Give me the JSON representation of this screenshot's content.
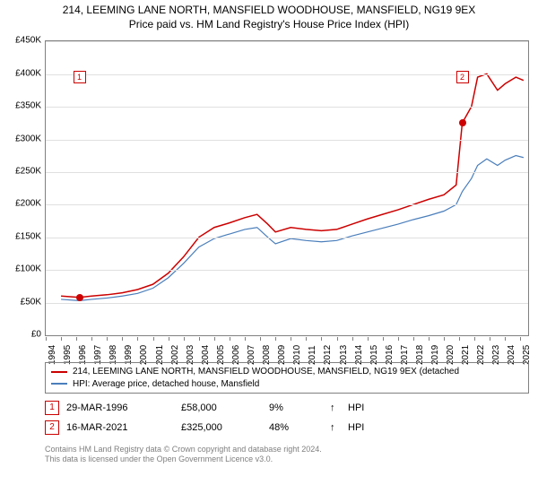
{
  "title": {
    "line1": "214, LEEMING LANE NORTH, MANSFIELD WOODHOUSE, MANSFIELD, NG19 9EX",
    "line2": "Price paid vs. HM Land Registry's House Price Index (HPI)"
  },
  "chart": {
    "type": "line",
    "background_color": "#ffffff",
    "grid_color": "#e0e0e0",
    "axis_color": "#808080",
    "xlim": [
      1994,
      2025.5
    ],
    "ylim": [
      0,
      450000
    ],
    "ytick_step": 50000,
    "ytick_labels": [
      "£0",
      "£50K",
      "£100K",
      "£150K",
      "£200K",
      "£250K",
      "£300K",
      "£350K",
      "£400K",
      "£450K"
    ],
    "xtick_years": [
      1994,
      1995,
      1996,
      1997,
      1998,
      1999,
      2000,
      2001,
      2002,
      2003,
      2004,
      2005,
      2006,
      2007,
      2008,
      2009,
      2010,
      2011,
      2012,
      2013,
      2014,
      2015,
      2016,
      2017,
      2018,
      2019,
      2020,
      2021,
      2022,
      2023,
      2024,
      2025
    ],
    "series": [
      {
        "name": "property",
        "label": "214, LEEMING LANE NORTH, MANSFIELD WOODHOUSE, MANSFIELD, NG19 9EX (detached)",
        "color": "#cc0000",
        "line_width": 1.5,
        "points": [
          [
            1995.0,
            60000
          ],
          [
            1996.2,
            58000
          ],
          [
            1997.0,
            60000
          ],
          [
            1998.0,
            62000
          ],
          [
            1999.0,
            65000
          ],
          [
            2000.0,
            70000
          ],
          [
            2001.0,
            78000
          ],
          [
            2002.0,
            95000
          ],
          [
            2003.0,
            120000
          ],
          [
            2004.0,
            150000
          ],
          [
            2005.0,
            165000
          ],
          [
            2006.0,
            172000
          ],
          [
            2007.0,
            180000
          ],
          [
            2007.8,
            185000
          ],
          [
            2008.5,
            170000
          ],
          [
            2009.0,
            158000
          ],
          [
            2010.0,
            165000
          ],
          [
            2011.0,
            162000
          ],
          [
            2012.0,
            160000
          ],
          [
            2013.0,
            162000
          ],
          [
            2014.0,
            170000
          ],
          [
            2015.0,
            178000
          ],
          [
            2016.0,
            185000
          ],
          [
            2017.0,
            192000
          ],
          [
            2018.0,
            200000
          ],
          [
            2019.0,
            208000
          ],
          [
            2020.0,
            215000
          ],
          [
            2020.8,
            230000
          ],
          [
            2021.2,
            325000
          ],
          [
            2021.8,
            350000
          ],
          [
            2022.2,
            395000
          ],
          [
            2022.8,
            400000
          ],
          [
            2023.5,
            375000
          ],
          [
            2024.0,
            385000
          ],
          [
            2024.7,
            395000
          ],
          [
            2025.2,
            390000
          ]
        ]
      },
      {
        "name": "hpi",
        "label": "HPI: Average price, detached house, Mansfield",
        "color": "#4a7ebb",
        "line_width": 1.2,
        "points": [
          [
            1995.0,
            55000
          ],
          [
            1996.2,
            53000
          ],
          [
            1997.0,
            55000
          ],
          [
            1998.0,
            57000
          ],
          [
            1999.0,
            60000
          ],
          [
            2000.0,
            64000
          ],
          [
            2001.0,
            72000
          ],
          [
            2002.0,
            88000
          ],
          [
            2003.0,
            110000
          ],
          [
            2004.0,
            135000
          ],
          [
            2005.0,
            148000
          ],
          [
            2006.0,
            155000
          ],
          [
            2007.0,
            162000
          ],
          [
            2007.8,
            165000
          ],
          [
            2008.5,
            150000
          ],
          [
            2009.0,
            140000
          ],
          [
            2010.0,
            148000
          ],
          [
            2011.0,
            145000
          ],
          [
            2012.0,
            143000
          ],
          [
            2013.0,
            145000
          ],
          [
            2014.0,
            152000
          ],
          [
            2015.0,
            158000
          ],
          [
            2016.0,
            164000
          ],
          [
            2017.0,
            170000
          ],
          [
            2018.0,
            177000
          ],
          [
            2019.0,
            183000
          ],
          [
            2020.0,
            190000
          ],
          [
            2020.8,
            200000
          ],
          [
            2021.2,
            220000
          ],
          [
            2021.8,
            240000
          ],
          [
            2022.2,
            260000
          ],
          [
            2022.8,
            270000
          ],
          [
            2023.5,
            260000
          ],
          [
            2024.0,
            268000
          ],
          [
            2024.7,
            275000
          ],
          [
            2025.2,
            272000
          ]
        ]
      }
    ],
    "transaction_markers": [
      {
        "num": "1",
        "x": 1996.2,
        "y": 58000,
        "box_y_offset_k": 395000
      },
      {
        "num": "2",
        "x": 2021.2,
        "y": 325000,
        "box_y_offset_k": 395000
      }
    ],
    "dot_color": "#cc0000"
  },
  "legend": {
    "rows": [
      {
        "color": "#cc0000",
        "label": "214, LEEMING LANE NORTH, MANSFIELD WOODHOUSE, MANSFIELD, NG19 9EX (detached"
      },
      {
        "color": "#4a7ebb",
        "label": "HPI: Average price, detached house, Mansfield"
      }
    ]
  },
  "transactions": [
    {
      "num": "1",
      "date": "29-MAR-1996",
      "price": "£58,000",
      "pct": "9%",
      "arrow": "↑",
      "hpi": "HPI"
    },
    {
      "num": "2",
      "date": "16-MAR-2021",
      "price": "£325,000",
      "pct": "48%",
      "arrow": "↑",
      "hpi": "HPI"
    }
  ],
  "footer": {
    "line1": "Contains HM Land Registry data © Crown copyright and database right 2024.",
    "line2": "This data is licensed under the Open Government Licence v3.0."
  },
  "fonts": {
    "title_size": 12,
    "axis_label_size": 10,
    "legend_size": 10,
    "table_size": 11,
    "footer_size": 9
  }
}
